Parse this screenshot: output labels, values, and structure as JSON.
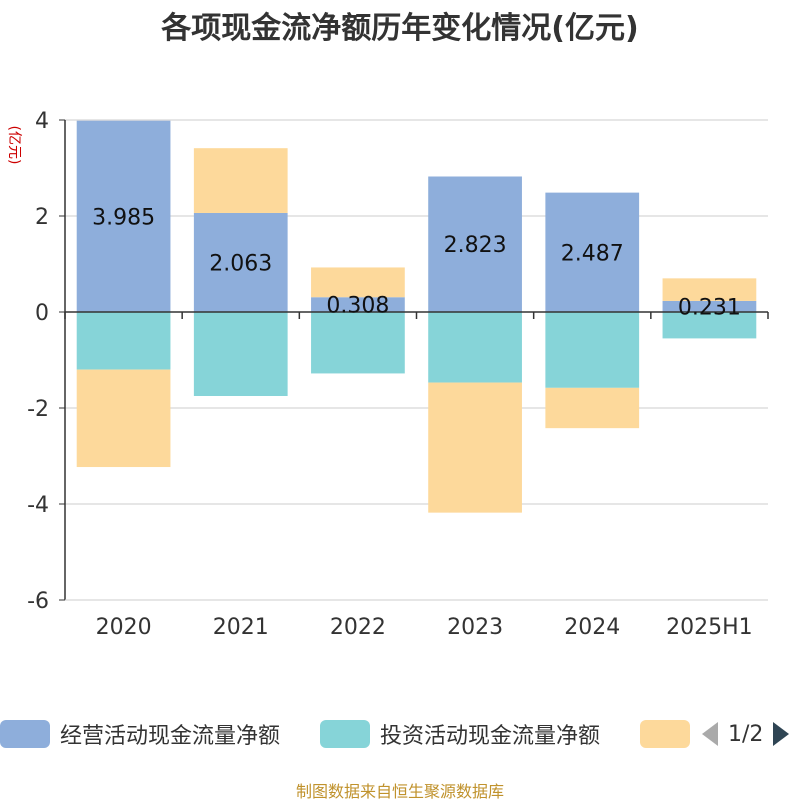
{
  "title": "各项现金流净额历年变化情况(亿元)",
  "y_unit": "(亿元)",
  "source": "制图数据来自恒生聚源数据库",
  "legend": {
    "items": [
      {
        "label": "经营活动现金流量净额",
        "color": "#8eaedb"
      },
      {
        "label": "投资活动现金流量净额",
        "color": "#86d4d8"
      },
      {
        "label": "",
        "color": "#fdd99b"
      }
    ],
    "page": "1/2"
  },
  "chart_data": {
    "type": "bar",
    "stacked": true,
    "categories": [
      "2020",
      "2021",
      "2022",
      "2023",
      "2024",
      "2025H1"
    ],
    "ylim": [
      -6,
      4
    ],
    "yticks": [
      4,
      2,
      0,
      -2,
      -4,
      -6
    ],
    "ylabel": "(亿元)",
    "series": [
      {
        "name": "经营活动现金流量净额",
        "color": "#8eaedb",
        "values": [
          3.985,
          2.063,
          0.308,
          2.823,
          2.487,
          0.231
        ],
        "labels": [
          "3.985",
          "2.063",
          "0.308",
          "2.823",
          "2.487",
          "0.231"
        ]
      },
      {
        "name": "投资活动现金流量净额",
        "color": "#86d4d8",
        "values": [
          -1.2,
          -1.75,
          -1.28,
          -1.47,
          -1.58,
          -0.55
        ]
      },
      {
        "color": "#fdd99b",
        "values": [
          -2.03,
          1.35,
          0.62,
          -2.71,
          -0.84,
          0.47
        ]
      }
    ]
  }
}
